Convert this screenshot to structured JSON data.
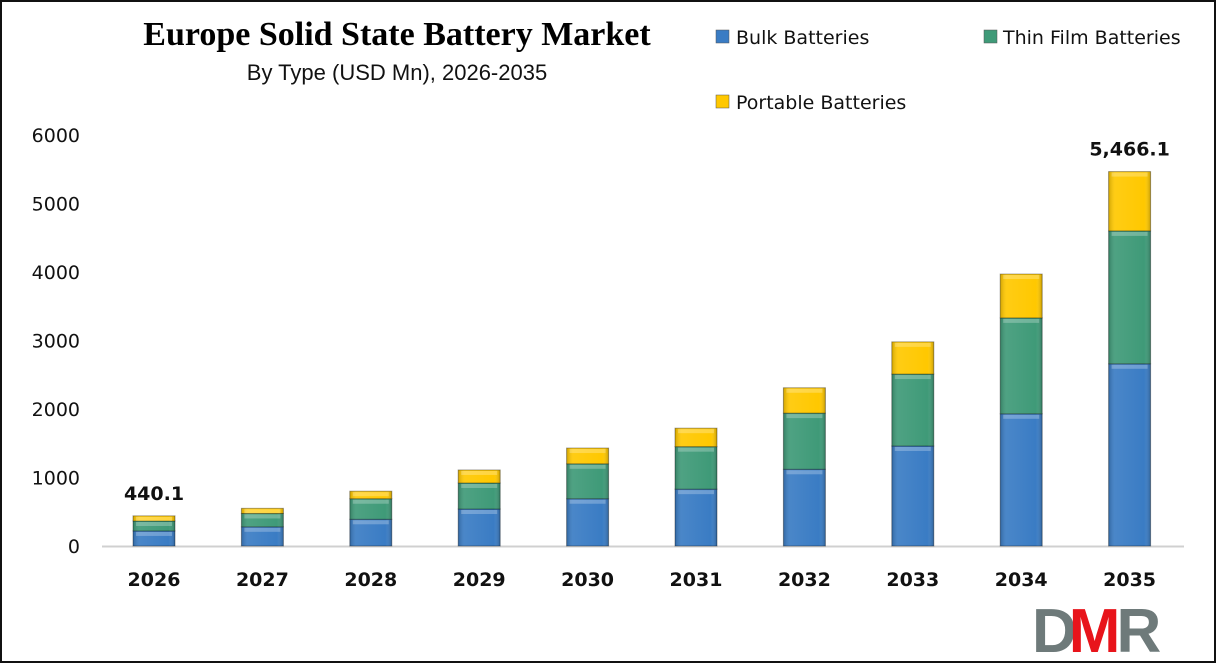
{
  "chart_data": {
    "type": "bar",
    "stacked": true,
    "title": "Europe Solid State Battery Market",
    "subtitle": "By Type (USD Mn), 2026-2035",
    "xlabel": "",
    "ylabel": "",
    "ylim": [
      0,
      6000
    ],
    "yticks": [
      0,
      1000,
      2000,
      3000,
      4000,
      5000,
      6000
    ],
    "grid": false,
    "legend_position": "top-right",
    "categories": [
      "2026",
      "2027",
      "2028",
      "2029",
      "2030",
      "2031",
      "2032",
      "2033",
      "2034",
      "2035"
    ],
    "series": [
      {
        "name": "Bulk Batteries",
        "color": "#3a7cc4",
        "values": [
          220,
          280,
          390,
          540,
          690,
          830,
          1120,
          1460,
          1930,
          2660
        ]
      },
      {
        "name": "Thin Film Batteries",
        "color": "#3f9a78",
        "values": [
          145,
          195,
          300,
          380,
          510,
          620,
          820,
          1050,
          1400,
          1940
        ]
      },
      {
        "name": "Portable Batteries",
        "color": "#ffc800",
        "values": [
          75,
          75,
          110,
          190,
          230,
          270,
          370,
          470,
          640,
          866
        ]
      }
    ],
    "data_labels": [
      {
        "category": "2026",
        "text": "440.1"
      },
      {
        "category": "2035",
        "text": "5,466.1"
      }
    ]
  },
  "logo": {
    "text": "DMR",
    "colors": [
      "#6e7a7a",
      "#e8141b",
      "#6e7a7a"
    ]
  }
}
